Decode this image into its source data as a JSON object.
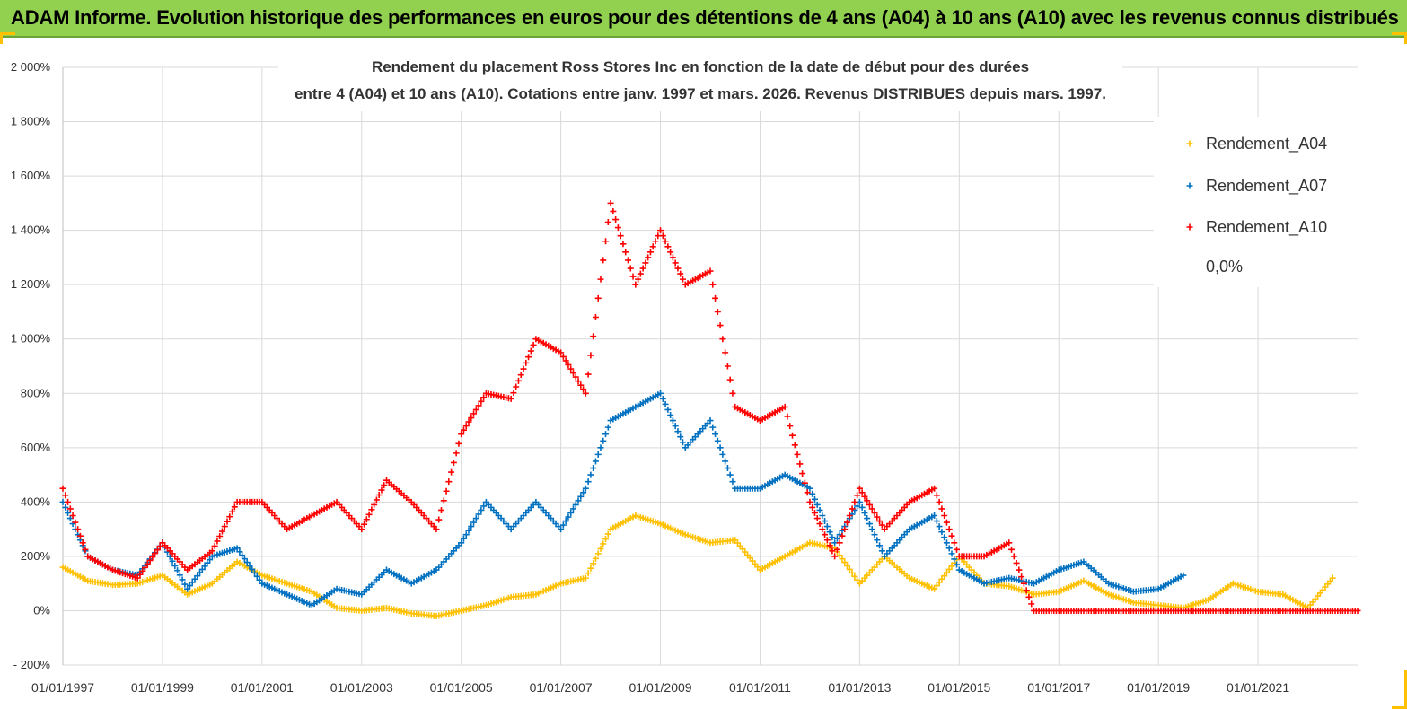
{
  "banner": {
    "title": "ADAM Informe. Evolution historique des performances en euros pour des détentions de 4 ans (A04) à 10 ans (A10) avec les revenus connus distribués"
  },
  "colors": {
    "banner_bg": "#92d050",
    "A04": "#ffc000",
    "A07": "#0070c0",
    "A10": "#ff0000",
    "zero_line": "#000000"
  },
  "chart_data": {
    "type": "scatter",
    "title_lines": [
      "Rendement du placement Ross Stores Inc en fonction de la date de début pour des durées",
      "entre 4 (A04) et 10 ans (A10). Cotations entre janv. 1997 et mars. 2026. Revenus DISTRIBUES depuis mars. 1997."
    ],
    "y_ticks": [
      "2 000%",
      "1 800%",
      "1 600%",
      "1 400%",
      "1 200%",
      "1 000%",
      "800%",
      "600%",
      "400%",
      "200%",
      "0%",
      "- 200%"
    ],
    "ylim": [
      -200,
      2000
    ],
    "x_ticks": [
      "01/01/1997",
      "01/01/1999",
      "01/01/2001",
      "01/01/2003",
      "01/01/2005",
      "01/01/2007",
      "01/01/2009",
      "01/01/2011",
      "01/01/2013",
      "01/01/2015",
      "01/01/2017",
      "01/01/2019",
      "01/01/2021"
    ],
    "xlim": [
      1997.0,
      2023.0
    ],
    "grid": true,
    "legend_position": "top-right",
    "series": [
      {
        "name": "Rendement_A04",
        "key": "A04",
        "x": [
          1997.0,
          1997.5,
          1998.0,
          1998.5,
          1999.0,
          1999.5,
          2000.0,
          2000.5,
          2001.0,
          2001.5,
          2002.0,
          2002.5,
          2003.0,
          2003.5,
          2004.0,
          2004.5,
          2005.0,
          2005.5,
          2006.0,
          2006.5,
          2007.0,
          2007.5,
          2008.0,
          2008.5,
          2009.0,
          2009.5,
          2010.0,
          2010.5,
          2011.0,
          2011.5,
          2012.0,
          2012.5,
          2013.0,
          2013.5,
          2014.0,
          2014.5,
          2015.0,
          2015.5,
          2016.0,
          2016.5,
          2017.0,
          2017.5,
          2018.0,
          2018.5,
          2019.0,
          2019.5,
          2020.0,
          2020.5,
          2021.0,
          2021.5,
          2022.0,
          2022.5
        ],
        "y": [
          160,
          110,
          95,
          100,
          130,
          60,
          100,
          180,
          130,
          100,
          70,
          10,
          0,
          10,
          -10,
          -20,
          0,
          20,
          50,
          60,
          100,
          120,
          300,
          350,
          320,
          280,
          250,
          260,
          150,
          200,
          250,
          230,
          100,
          200,
          120,
          80,
          200,
          100,
          90,
          60,
          70,
          110,
          60,
          30,
          20,
          10,
          40,
          100,
          70,
          60,
          10,
          120
        ]
      },
      {
        "name": "Rendement_A07",
        "key": "A07",
        "x": [
          1997.0,
          1997.5,
          1998.0,
          1998.5,
          1999.0,
          1999.5,
          2000.0,
          2000.5,
          2001.0,
          2001.5,
          2002.0,
          2002.5,
          2003.0,
          2003.5,
          2004.0,
          2004.5,
          2005.0,
          2005.5,
          2006.0,
          2006.5,
          2007.0,
          2007.5,
          2008.0,
          2008.5,
          2009.0,
          2009.5,
          2010.0,
          2010.5,
          2011.0,
          2011.5,
          2012.0,
          2012.5,
          2013.0,
          2013.5,
          2014.0,
          2014.5,
          2015.0,
          2015.5,
          2016.0,
          2016.5,
          2017.0,
          2017.5,
          2018.0,
          2018.5,
          2019.0,
          2019.5
        ],
        "y": [
          400,
          200,
          150,
          130,
          250,
          80,
          200,
          230,
          100,
          60,
          20,
          80,
          60,
          150,
          100,
          150,
          250,
          400,
          300,
          400,
          300,
          450,
          700,
          750,
          800,
          600,
          700,
          450,
          450,
          500,
          450,
          250,
          400,
          200,
          300,
          350,
          150,
          100,
          120,
          100,
          150,
          180,
          100,
          70,
          80,
          130
        ]
      },
      {
        "name": "Rendement_A10",
        "key": "A10",
        "x": [
          1997.0,
          1997.5,
          1998.0,
          1998.5,
          1999.0,
          1999.5,
          2000.0,
          2000.5,
          2001.0,
          2001.5,
          2002.0,
          2002.5,
          2003.0,
          2003.5,
          2004.0,
          2004.5,
          2005.0,
          2005.5,
          2006.0,
          2006.5,
          2007.0,
          2007.5,
          2008.0,
          2008.5,
          2009.0,
          2009.5,
          2010.0,
          2010.5,
          2011.0,
          2011.5,
          2012.0,
          2012.5,
          2013.0,
          2013.5,
          2014.0,
          2014.5,
          2015.0,
          2015.5,
          2016.0,
          2016.5,
          2017.0,
          2017.5,
          2018.0,
          2018.5,
          2019.0,
          2019.5,
          2020.0,
          2020.5,
          2021.0,
          2021.5,
          2022.0,
          2022.5,
          2023.0
        ],
        "y": [
          450,
          200,
          150,
          120,
          250,
          150,
          220,
          400,
          400,
          300,
          350,
          400,
          300,
          480,
          400,
          300,
          650,
          800,
          780,
          1000,
          950,
          800,
          1500,
          1200,
          1400,
          1200,
          1250,
          750,
          700,
          750,
          400,
          200,
          450,
          300,
          400,
          450,
          200,
          200,
          250,
          0,
          0,
          0,
          0,
          0,
          0,
          0,
          0,
          0,
          0,
          0,
          0,
          0,
          0
        ]
      },
      {
        "name": "0,0%",
        "key": "zero",
        "x": [
          1997.0,
          2023.0
        ],
        "y": [
          0,
          0
        ]
      }
    ]
  }
}
